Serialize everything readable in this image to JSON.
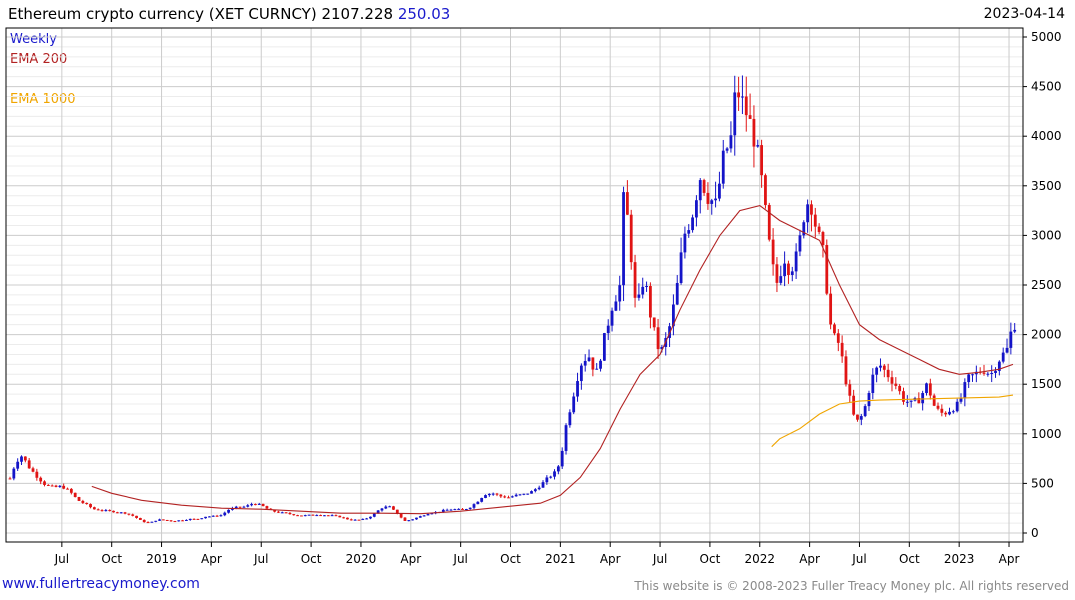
{
  "header": {
    "title": "Ethereum crypto currency  (XET CURNCY)",
    "last": "2107.228",
    "change": "250.03",
    "date": "2023-04-14"
  },
  "footer": {
    "link": "www.fullertreacymoney.com",
    "copyright": "This website is © 2008-2023 Fuller Treacy Money plc. All rights reserved"
  },
  "colors": {
    "up": "#1414c8",
    "down": "#e01414",
    "ema200": "#b22222",
    "ema1000": "#f0a500",
    "grid": "#cccccc"
  },
  "chart_data": {
    "type": "candlestick",
    "title": "Ethereum crypto currency (XET CURNCY)",
    "period": "Weekly",
    "ylim": [
      0,
      5000
    ],
    "y_ticks": [
      0,
      500,
      1000,
      1500,
      2000,
      2500,
      3000,
      3500,
      4000,
      4500,
      5000
    ],
    "x_ticks": [
      {
        "label": "Jul",
        "t": 2018.5
      },
      {
        "label": "Oct",
        "t": 2018.75
      },
      {
        "label": "2019",
        "t": 2019.0
      },
      {
        "label": "Apr",
        "t": 2019.25
      },
      {
        "label": "Jul",
        "t": 2019.5
      },
      {
        "label": "Oct",
        "t": 2019.75
      },
      {
        "label": "2020",
        "t": 2020.0
      },
      {
        "label": "Apr",
        "t": 2020.25
      },
      {
        "label": "Jul",
        "t": 2020.5
      },
      {
        "label": "Oct",
        "t": 2020.75
      },
      {
        "label": "2021",
        "t": 2021.0
      },
      {
        "label": "Apr",
        "t": 2021.25
      },
      {
        "label": "Jul",
        "t": 2021.5
      },
      {
        "label": "Oct",
        "t": 2021.75
      },
      {
        "label": "2022",
        "t": 2022.0
      },
      {
        "label": "Apr",
        "t": 2022.25
      },
      {
        "label": "Jul",
        "t": 2022.5
      },
      {
        "label": "Oct",
        "t": 2022.75
      },
      {
        "label": "2023",
        "t": 2023.0
      },
      {
        "label": "Apr",
        "t": 2023.25
      }
    ],
    "x_range": [
      2018.24,
      2023.28
    ],
    "legend": [
      {
        "label": "Weekly",
        "color": "#1a1acc"
      },
      {
        "label": "EMA 200",
        "color": "#b22222"
      },
      {
        "label": "EMA 1000",
        "color": "#f0a500"
      }
    ],
    "price_path": [
      [
        2018.24,
        550
      ],
      [
        2018.27,
        720
      ],
      [
        2018.3,
        780
      ],
      [
        2018.34,
        650
      ],
      [
        2018.38,
        560
      ],
      [
        2018.42,
        480
      ],
      [
        2018.46,
        460
      ],
      [
        2018.5,
        470
      ],
      [
        2018.54,
        420
      ],
      [
        2018.58,
        330
      ],
      [
        2018.62,
        290
      ],
      [
        2018.66,
        240
      ],
      [
        2018.7,
        230
      ],
      [
        2018.74,
        220
      ],
      [
        2018.78,
        210
      ],
      [
        2018.82,
        200
      ],
      [
        2018.86,
        170
      ],
      [
        2018.9,
        120
      ],
      [
        2018.94,
        100
      ],
      [
        2018.98,
        135
      ],
      [
        2019.02,
        130
      ],
      [
        2019.06,
        120
      ],
      [
        2019.1,
        130
      ],
      [
        2019.14,
        140
      ],
      [
        2019.18,
        140
      ],
      [
        2019.22,
        165
      ],
      [
        2019.26,
        170
      ],
      [
        2019.3,
        180
      ],
      [
        2019.34,
        240
      ],
      [
        2019.38,
        260
      ],
      [
        2019.42,
        265
      ],
      [
        2019.46,
        300
      ],
      [
        2019.5,
        280
      ],
      [
        2019.54,
        230
      ],
      [
        2019.58,
        210
      ],
      [
        2019.62,
        200
      ],
      [
        2019.66,
        185
      ],
      [
        2019.7,
        175
      ],
      [
        2019.74,
        180
      ],
      [
        2019.78,
        185
      ],
      [
        2019.82,
        180
      ],
      [
        2019.86,
        175
      ],
      [
        2019.9,
        160
      ],
      [
        2019.94,
        135
      ],
      [
        2019.98,
        130
      ],
      [
        2020.02,
        140
      ],
      [
        2020.06,
        180
      ],
      [
        2020.1,
        250
      ],
      [
        2020.14,
        270
      ],
      [
        2020.18,
        200
      ],
      [
        2020.22,
        120
      ],
      [
        2020.26,
        140
      ],
      [
        2020.3,
        170
      ],
      [
        2020.34,
        200
      ],
      [
        2020.38,
        210
      ],
      [
        2020.42,
        230
      ],
      [
        2020.46,
        240
      ],
      [
        2020.5,
        235
      ],
      [
        2020.54,
        250
      ],
      [
        2020.58,
        310
      ],
      [
        2020.62,
        390
      ],
      [
        2020.66,
        400
      ],
      [
        2020.7,
        370
      ],
      [
        2020.74,
        360
      ],
      [
        2020.78,
        380
      ],
      [
        2020.82,
        390
      ],
      [
        2020.86,
        420
      ],
      [
        2020.9,
        480
      ],
      [
        2020.94,
        560
      ],
      [
        2020.98,
        620
      ],
      [
        2021.0,
        730
      ],
      [
        2021.03,
        1100
      ],
      [
        2021.06,
        1350
      ],
      [
        2021.1,
        1700
      ],
      [
        2021.14,
        1800
      ],
      [
        2021.18,
        1600
      ],
      [
        2021.22,
        1950
      ],
      [
        2021.26,
        2300
      ],
      [
        2021.3,
        2500
      ],
      [
        2021.32,
        3500
      ],
      [
        2021.36,
        2700
      ],
      [
        2021.38,
        2200
      ],
      [
        2021.42,
        2600
      ],
      [
        2021.46,
        2100
      ],
      [
        2021.5,
        1800
      ],
      [
        2021.54,
        2000
      ],
      [
        2021.58,
        2400
      ],
      [
        2021.62,
        3000
      ],
      [
        2021.66,
        3200
      ],
      [
        2021.7,
        3600
      ],
      [
        2021.74,
        3400
      ],
      [
        2021.78,
        3300
      ],
      [
        2021.82,
        3800
      ],
      [
        2021.86,
        4000
      ],
      [
        2021.88,
        4500
      ],
      [
        2021.91,
        4350
      ],
      [
        2021.94,
        4200
      ],
      [
        2021.97,
        4000
      ],
      [
        2022.0,
        3700
      ],
      [
        2022.03,
        3200
      ],
      [
        2022.06,
        2700
      ],
      [
        2022.09,
        2500
      ],
      [
        2022.12,
        2800
      ],
      [
        2022.15,
        2650
      ],
      [
        2022.19,
        2800
      ],
      [
        2022.22,
        3200
      ],
      [
        2022.25,
        3400
      ],
      [
        2022.28,
        3100
      ],
      [
        2022.32,
        2800
      ],
      [
        2022.36,
        2000
      ],
      [
        2022.4,
        1900
      ],
      [
        2022.44,
        1450
      ],
      [
        2022.48,
        1100
      ],
      [
        2022.52,
        1200
      ],
      [
        2022.56,
        1550
      ],
      [
        2022.6,
        1700
      ],
      [
        2022.64,
        1600
      ],
      [
        2022.68,
        1500
      ],
      [
        2022.72,
        1350
      ],
      [
        2022.76,
        1300
      ],
      [
        2022.8,
        1350
      ],
      [
        2022.84,
        1500
      ],
      [
        2022.88,
        1250
      ],
      [
        2022.92,
        1200
      ],
      [
        2022.96,
        1250
      ],
      [
        2023.0,
        1300
      ],
      [
        2023.04,
        1550
      ],
      [
        2023.08,
        1600
      ],
      [
        2023.12,
        1650
      ],
      [
        2023.16,
        1600
      ],
      [
        2023.2,
        1750
      ],
      [
        2023.24,
        1850
      ],
      [
        2023.27,
        2107
      ]
    ],
    "ema200": [
      [
        2018.65,
        470
      ],
      [
        2018.75,
        400
      ],
      [
        2018.9,
        330
      ],
      [
        2019.1,
        280
      ],
      [
        2019.3,
        250
      ],
      [
        2019.5,
        240
      ],
      [
        2019.7,
        220
      ],
      [
        2019.9,
        200
      ],
      [
        2020.1,
        200
      ],
      [
        2020.3,
        195
      ],
      [
        2020.5,
        220
      ],
      [
        2020.7,
        260
      ],
      [
        2020.9,
        300
      ],
      [
        2021.0,
        380
      ],
      [
        2021.1,
        560
      ],
      [
        2021.2,
        850
      ],
      [
        2021.3,
        1250
      ],
      [
        2021.4,
        1600
      ],
      [
        2021.5,
        1800
      ],
      [
        2021.6,
        2250
      ],
      [
        2021.7,
        2650
      ],
      [
        2021.8,
        3000
      ],
      [
        2021.9,
        3250
      ],
      [
        2022.0,
        3300
      ],
      [
        2022.1,
        3150
      ],
      [
        2022.2,
        3050
      ],
      [
        2022.3,
        2950
      ],
      [
        2022.4,
        2500
      ],
      [
        2022.5,
        2100
      ],
      [
        2022.6,
        1950
      ],
      [
        2022.7,
        1850
      ],
      [
        2022.8,
        1750
      ],
      [
        2022.9,
        1650
      ],
      [
        2023.0,
        1600
      ],
      [
        2023.1,
        1620
      ],
      [
        2023.2,
        1650
      ],
      [
        2023.27,
        1700
      ]
    ],
    "ema1000": [
      [
        2022.06,
        870
      ],
      [
        2022.1,
        950
      ],
      [
        2022.2,
        1050
      ],
      [
        2022.3,
        1200
      ],
      [
        2022.4,
        1300
      ],
      [
        2022.5,
        1330
      ],
      [
        2022.6,
        1340
      ],
      [
        2022.7,
        1345
      ],
      [
        2022.8,
        1350
      ],
      [
        2022.9,
        1355
      ],
      [
        2023.0,
        1360
      ],
      [
        2023.1,
        1365
      ],
      [
        2023.2,
        1370
      ],
      [
        2023.27,
        1390
      ]
    ]
  }
}
